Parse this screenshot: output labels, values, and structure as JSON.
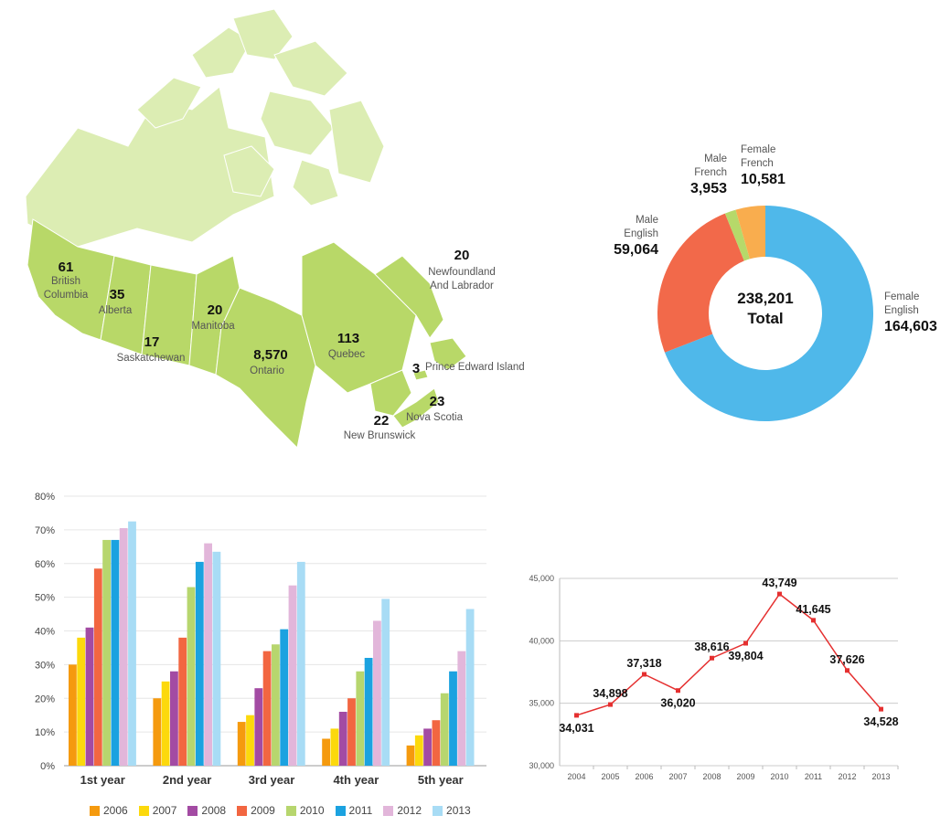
{
  "map": {
    "regions": [
      {
        "id": "bc",
        "value": "61",
        "label_lines": [
          "British",
          "Columbia"
        ]
      },
      {
        "id": "ab",
        "value": "35",
        "label_lines": [
          "Alberta"
        ]
      },
      {
        "id": "sk",
        "value": "17",
        "label_lines": [
          "Saskatchewan"
        ]
      },
      {
        "id": "mb",
        "value": "20",
        "label_lines": [
          "Manitoba"
        ]
      },
      {
        "id": "on",
        "value": "8,570",
        "label_lines": [
          "Ontario"
        ]
      },
      {
        "id": "qc",
        "value": "113",
        "label_lines": [
          "Quebec"
        ]
      },
      {
        "id": "nl",
        "value": "20",
        "label_lines": [
          "Newfoundland",
          "And Labrador"
        ]
      },
      {
        "id": "pe",
        "value": "3",
        "label_lines": [
          "Prince  Edward Island"
        ]
      },
      {
        "id": "ns",
        "value": "23",
        "label_lines": [
          "Nova Scotia"
        ]
      },
      {
        "id": "nb",
        "value": "22",
        "label_lines": [
          "New Brunswick"
        ]
      }
    ],
    "colors": {
      "provinces": "#b8d868",
      "north": "#dcedb3",
      "border": "#ffffff"
    }
  },
  "chart_data": [
    {
      "type": "pie",
      "variant": "donut",
      "center_value": "238,201",
      "center_label": "Total",
      "slices": [
        {
          "label_lines": [
            "Female",
            "English"
          ],
          "value": 164603,
          "value_text": "164,603",
          "color": "#4fb8ea"
        },
        {
          "label_lines": [
            "Male",
            "English"
          ],
          "value": 59064,
          "value_text": "59,064",
          "color": "#f2694a"
        },
        {
          "label_lines": [
            "Male",
            "French"
          ],
          "value": 3953,
          "value_text": "3,953",
          "color": "#b6d96a"
        },
        {
          "label_lines": [
            "Female",
            "French"
          ],
          "value": 10581,
          "value_text": "10,581",
          "color": "#f9ad4e"
        }
      ]
    },
    {
      "type": "bar",
      "categories": [
        "1st year",
        "2nd year",
        "3rd year",
        "4th year",
        "5th year"
      ],
      "ylim": [
        0,
        80
      ],
      "yticks": [
        "0%",
        "10%",
        "20%",
        "30%",
        "40%",
        "50%",
        "60%",
        "70%",
        "80%"
      ],
      "grid": true,
      "legend_position": "bottom",
      "series": [
        {
          "name": "2006",
          "color": "#f59a0e",
          "values": [
            30,
            20,
            13,
            8,
            6
          ]
        },
        {
          "name": "2007",
          "color": "#fcd90c",
          "values": [
            38,
            25,
            15,
            11,
            9
          ]
        },
        {
          "name": "2008",
          "color": "#a34ba3",
          "values": [
            41,
            28,
            23,
            16,
            11
          ]
        },
        {
          "name": "2009",
          "color": "#f26641",
          "values": [
            58.5,
            38,
            34,
            20,
            13.5
          ]
        },
        {
          "name": "2010",
          "color": "#b7d66e",
          "values": [
            67,
            53,
            36,
            28,
            21.5
          ]
        },
        {
          "name": "2011",
          "color": "#1ba2e0",
          "values": [
            67,
            60.5,
            40.5,
            32,
            28
          ]
        },
        {
          "name": "2012",
          "color": "#e2b6da",
          "values": [
            70.5,
            66,
            53.5,
            43,
            34
          ]
        },
        {
          "name": "2013",
          "color": "#a8dcf5",
          "values": [
            72.5,
            63.5,
            60.5,
            49.5,
            46.5
          ]
        }
      ]
    },
    {
      "type": "line",
      "x": [
        "2004",
        "2005",
        "2006",
        "2007",
        "2008",
        "2009",
        "2010",
        "2011",
        "2012",
        "2013"
      ],
      "values": [
        34031,
        34898,
        37318,
        36020,
        38616,
        39804,
        43749,
        41645,
        37626,
        34528
      ],
      "value_labels": [
        "34,031",
        "34,898",
        "37,318",
        "36,020",
        "38,616",
        "39,804",
        "43,749",
        "41,645",
        "37,626",
        "34,528"
      ],
      "label_side": [
        "below",
        "above",
        "above",
        "below",
        "above",
        "below",
        "above",
        "above",
        "above",
        "below"
      ],
      "ylim": [
        30000,
        45000
      ],
      "yticks": [
        "30,000",
        "35,000",
        "40,000",
        "45,000"
      ],
      "color": "#e53030",
      "grid": true
    }
  ]
}
